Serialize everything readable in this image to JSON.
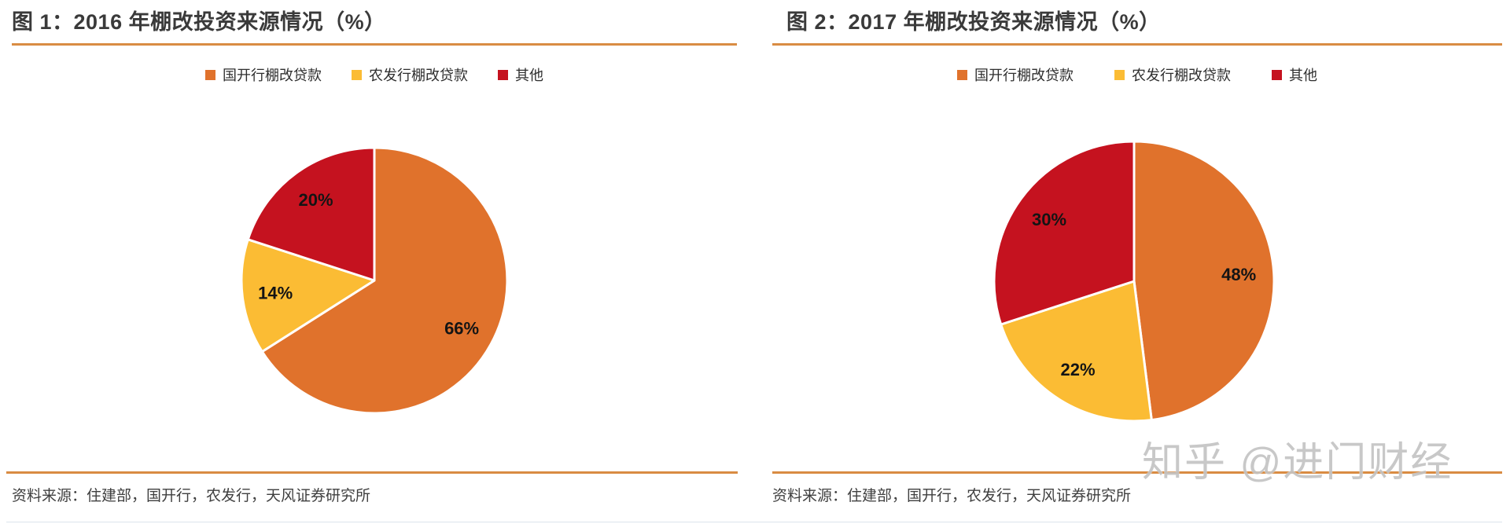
{
  "watermark": "知乎 @进门财经",
  "colors": {
    "orange": "#E0722C",
    "yellow": "#FBBC34",
    "red": "#C5121F",
    "divider": "#D98C43"
  },
  "panels": [
    {
      "title": "图 1：2016 年棚改投资来源情况（%）",
      "source": "资料来源：住建部，国开行，农发行，天风证券研究所",
      "legend": [
        {
          "label": "国开行棚改贷款",
          "color": "#E0722C"
        },
        {
          "label": "农发行棚改贷款",
          "color": "#FBBC34"
        },
        {
          "label": "其他",
          "color": "#C5121F"
        }
      ]
    },
    {
      "title": "图 2：2017 年棚改投资来源情况（%）",
      "source": "资料来源：住建部，国开行，农发行，天风证券研究所",
      "legend": [
        {
          "label": "国开行棚改贷款",
          "color": "#E0722C"
        },
        {
          "label": "农发行棚改贷款",
          "color": "#FBBC34"
        },
        {
          "label": "其他",
          "color": "#C5121F"
        }
      ]
    }
  ],
  "chart_data": [
    {
      "type": "pie",
      "title": "图 1：2016 年棚改投资来源情况（%）",
      "labels": [
        "国开行棚改贷款",
        "农发行棚改贷款",
        "其他"
      ],
      "values": [
        66,
        14,
        20
      ],
      "data_labels": [
        "66%",
        "14%",
        "20%"
      ],
      "colors": [
        "#E0722C",
        "#FBBC34",
        "#C5121F"
      ],
      "start_angle": "12-oclock",
      "direction": "clockwise",
      "legend_position": "top"
    },
    {
      "type": "pie",
      "title": "图 2：2017 年棚改投资来源情况（%）",
      "labels": [
        "国开行棚改贷款",
        "农发行棚改贷款",
        "其他"
      ],
      "values": [
        48,
        22,
        30
      ],
      "data_labels": [
        "48%",
        "22%",
        "30%"
      ],
      "colors": [
        "#E0722C",
        "#FBBC34",
        "#C5121F"
      ],
      "start_angle": "12-oclock",
      "direction": "clockwise",
      "legend_position": "top"
    }
  ]
}
